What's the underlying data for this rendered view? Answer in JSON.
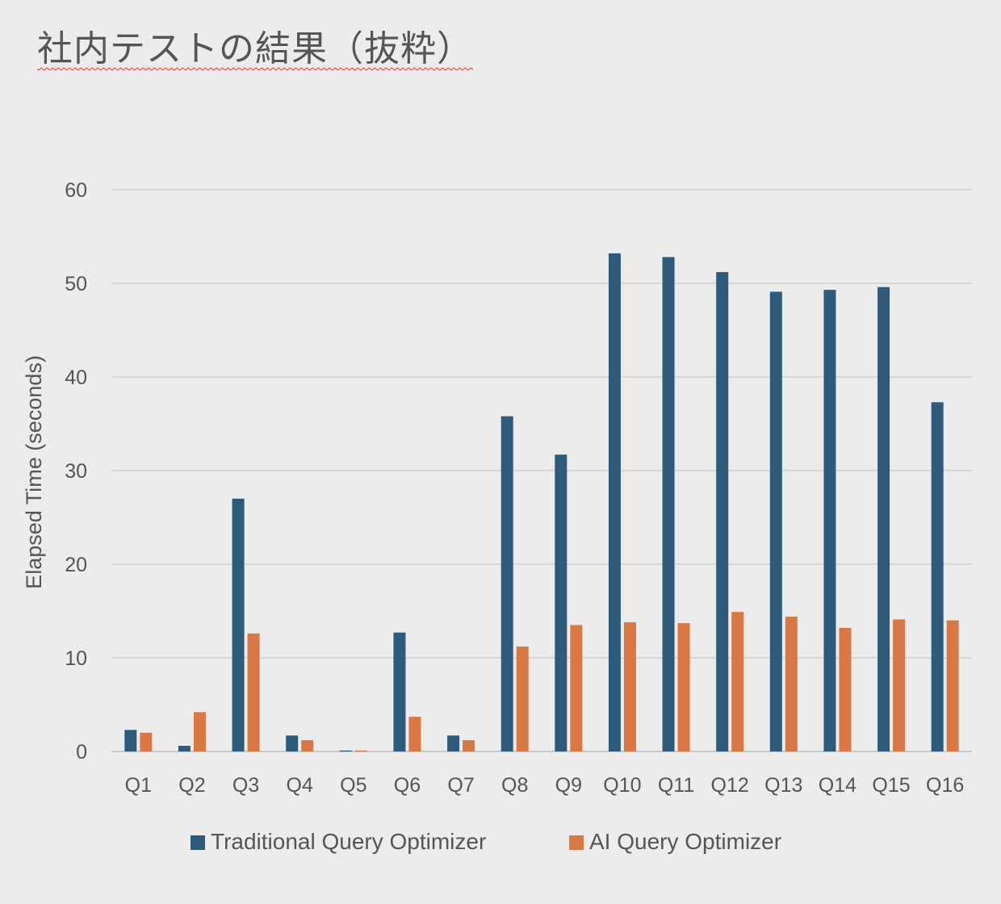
{
  "slide": {
    "title": "社内テストの結果（抜粋）"
  },
  "chart_data": {
    "type": "bar",
    "title": "",
    "xlabel": "",
    "ylabel": "Elapsed Time (seconds)",
    "ylim": [
      0,
      60
    ],
    "yticks": [
      0,
      10,
      20,
      30,
      40,
      50,
      60
    ],
    "grid": true,
    "legend_position": "bottom",
    "categories": [
      "Q1",
      "Q2",
      "Q3",
      "Q4",
      "Q5",
      "Q6",
      "Q7",
      "Q8",
      "Q9",
      "Q10",
      "Q11",
      "Q12",
      "Q13",
      "Q14",
      "Q15",
      "Q16"
    ],
    "series": [
      {
        "name": "Traditional Query Optimizer",
        "color": "#2e5b7c",
        "values": [
          2.3,
          0.6,
          27.0,
          1.7,
          0.1,
          12.7,
          1.7,
          35.8,
          31.7,
          53.2,
          52.8,
          51.2,
          49.1,
          49.3,
          49.6,
          37.3
        ]
      },
      {
        "name": "AI Query Optimizer",
        "color": "#d97844",
        "values": [
          2.0,
          4.2,
          12.6,
          1.2,
          0.1,
          3.7,
          1.2,
          11.2,
          13.5,
          13.8,
          13.7,
          14.9,
          14.4,
          13.2,
          14.1,
          14.0
        ]
      }
    ]
  }
}
